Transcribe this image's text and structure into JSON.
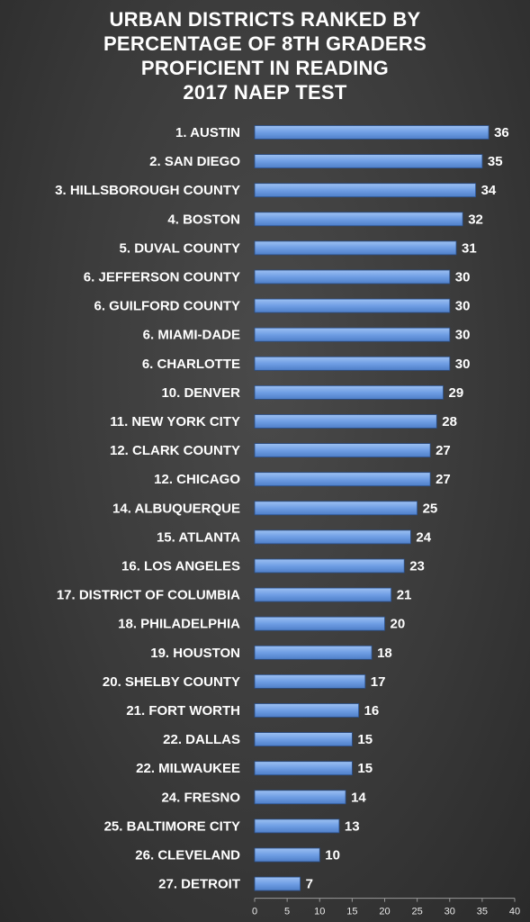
{
  "chart_data": {
    "type": "bar",
    "orientation": "horizontal",
    "title": [
      "URBAN DISTRICTS RANKED BY",
      "PERCENTAGE OF 8TH GRADERS",
      "PROFICIENT IN READING",
      "2017 NAEP TEST"
    ],
    "categories": [
      "1. AUSTIN",
      "2. SAN DIEGO",
      "3. HILLSBOROUGH COUNTY",
      "4. BOSTON",
      "5. DUVAL COUNTY",
      "6. JEFFERSON COUNTY",
      "6. GUILFORD COUNTY",
      "6. MIAMI-DADE",
      "6. CHARLOTTE",
      "10. DENVER",
      "11. NEW YORK CITY",
      "12. CLARK COUNTY",
      "12. CHICAGO",
      "14. ALBUQUERQUE",
      "15. ATLANTA",
      "16. LOS ANGELES",
      "17. DISTRICT OF COLUMBIA",
      "18. PHILADELPHIA",
      "19. HOUSTON",
      "20. SHELBY COUNTY",
      "21. FORT WORTH",
      "22. DALLAS",
      "22. MILWAUKEE",
      "24. FRESNO",
      "25. BALTIMORE CITY",
      "26. CLEVELAND",
      "27. DETROIT"
    ],
    "values": [
      36,
      35,
      34,
      32,
      31,
      30,
      30,
      30,
      30,
      29,
      28,
      27,
      27,
      25,
      24,
      23,
      21,
      20,
      18,
      17,
      16,
      15,
      15,
      14,
      13,
      10,
      7
    ],
    "xlim": [
      0,
      40
    ],
    "xticks": [
      0,
      5,
      10,
      15,
      20,
      25,
      30,
      35,
      40
    ],
    "grid": false,
    "legend": "none",
    "data_labels": true,
    "colors": {
      "bar": "#6f9ee4",
      "bar_edge": "#2a4f8a",
      "label_text": "#ffffff",
      "tick_text": "#e8e8e8",
      "axis": "#9a9a9a"
    }
  }
}
